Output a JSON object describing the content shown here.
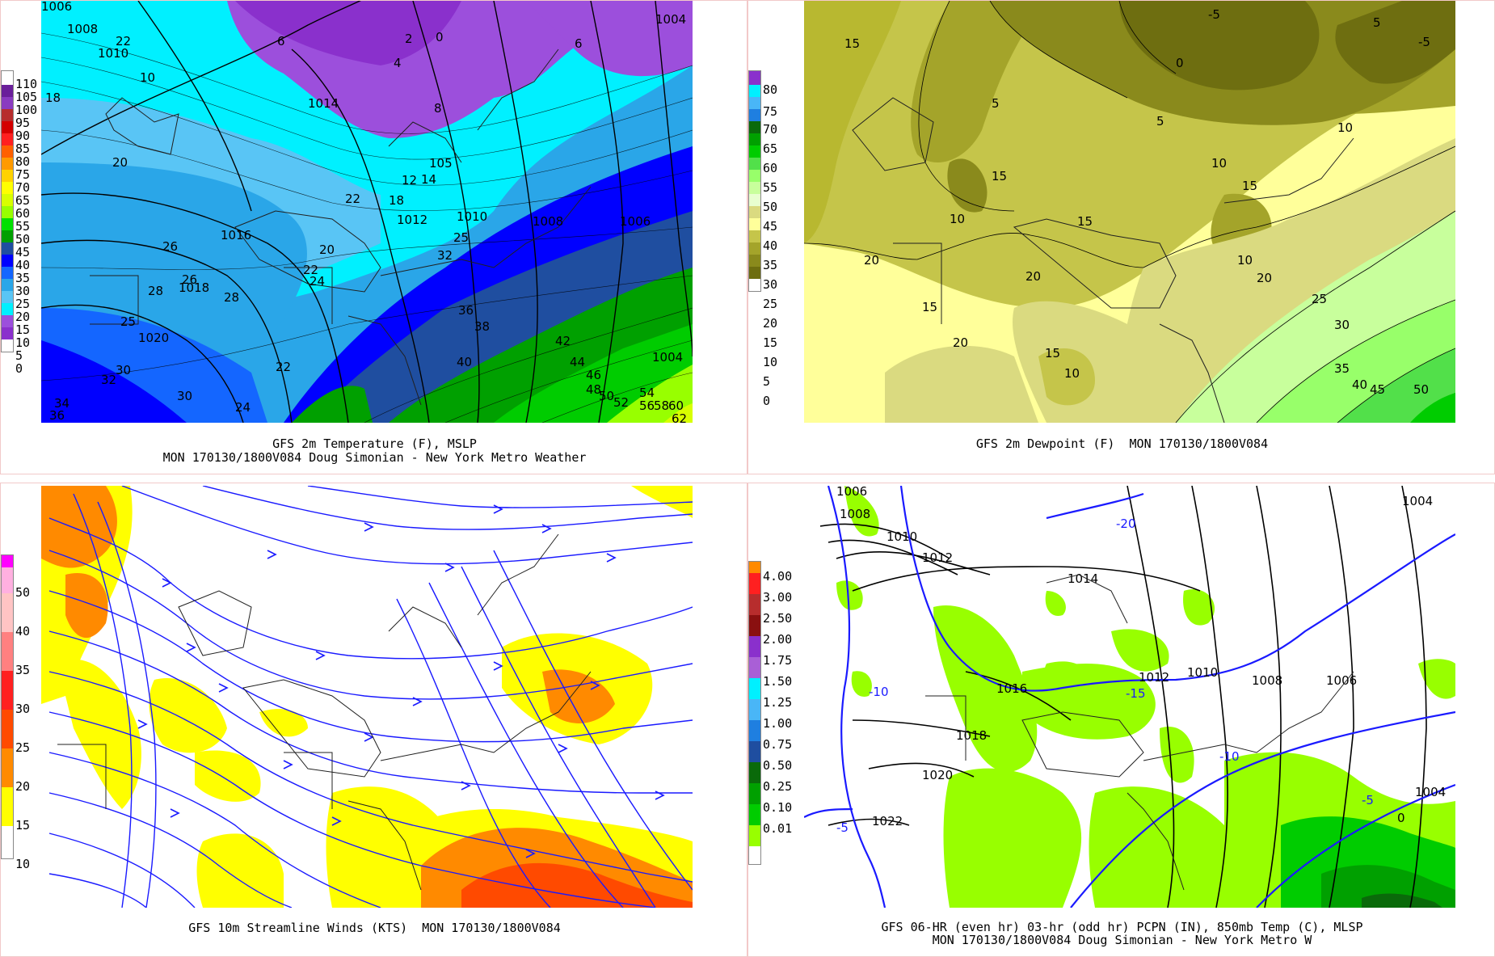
{
  "panels": {
    "temperature": {
      "caption_line1": "GFS 2m Temperature (F), MSLP",
      "caption_line2": "MON 170130/1800V084 Doug Simonian - New York Metro Weather",
      "colorbar": [
        "110",
        "105",
        "100",
        "95",
        "90",
        "85",
        "80",
        "75",
        "70",
        "65",
        "60",
        "55",
        "50",
        "45",
        "40",
        "35",
        "30",
        "25",
        "20",
        "15",
        "10",
        "5",
        "0"
      ],
      "colors": [
        "#ffffff",
        "#6a1f9a",
        "#8a3bc0",
        "#a95fd6",
        "#b72d2d",
        "#d40000",
        "#ff2020",
        "#ff6000",
        "#ff9a00",
        "#ffd200",
        "#ffff00",
        "#d8ff00",
        "#98ff00",
        "#00cc00",
        "#00a000",
        "#0050d0",
        "#0000ff",
        "#1f7fe0",
        "#49b6f7",
        "#7fe4ff",
        "#00ffff",
        "#a8f3ff",
        "#ffffff"
      ],
      "labels": [
        "1006",
        "1008",
        "22",
        "1010",
        "18",
        "10",
        "1014",
        "6",
        "2",
        "0",
        "4",
        "8",
        "6",
        "1004",
        "20",
        "105",
        "12",
        "14",
        "18",
        "22",
        "1012",
        "1010",
        "1008",
        "1006",
        "1016",
        "26",
        "25",
        "20",
        "22",
        "24",
        "28",
        "26",
        "1018",
        "28",
        "25",
        "1020",
        "30",
        "32",
        "34",
        "36",
        "30",
        "22",
        "24",
        "32",
        "36",
        "38",
        "40",
        "42",
        "44",
        "46",
        "48",
        "50",
        "52",
        "54",
        "56",
        "58",
        "60",
        "62",
        "1004"
      ]
    },
    "dewpoint": {
      "caption_line1": "GFS 2m Dewpoint (F)  MON 170130/1800V084",
      "colorbar": [
        "80",
        "75",
        "70",
        "65",
        "60",
        "55",
        "50",
        "45",
        "40",
        "35",
        "30",
        "25",
        "20",
        "15",
        "10",
        "5",
        "0"
      ],
      "labels": [
        "-5",
        "15",
        "5",
        "0",
        "-5",
        "5",
        "5",
        "10",
        "15",
        "10",
        "15",
        "10",
        "15",
        "20",
        "20",
        "15",
        "20",
        "10",
        "20",
        "25",
        "30",
        "15",
        "10",
        "35",
        "40",
        "45",
        "50"
      ]
    },
    "wind": {
      "caption_line1": "GFS 10m Streamline Winds (KTS)  MON 170130/1800V084",
      "colorbar": [
        "50",
        "40",
        "35",
        "30",
        "25",
        "20",
        "15",
        "10"
      ]
    },
    "precip": {
      "caption_line1": "GFS 06-HR (even hr) 03-hr (odd hr) PCPN (IN), 850mb Temp (C), MLSP",
      "caption_line2": "MON 170130/1800V084 Doug Simonian - New York Metro W",
      "colorbar": [
        "4.00",
        "3.00",
        "2.50",
        "2.00",
        "1.75",
        "1.50",
        "1.25",
        "1.00",
        "0.75",
        "0.50",
        "0.25",
        "0.10",
        "0.01"
      ],
      "labels": [
        "1006",
        "1008",
        "1010",
        "1012",
        "1014",
        "-20",
        "1004",
        "-10",
        "1016",
        "1018",
        "1020",
        "1022",
        "-5",
        "-15",
        "1012",
        "1010",
        "1008",
        "1006",
        "-10",
        "-5",
        "1004",
        "0"
      ]
    }
  }
}
